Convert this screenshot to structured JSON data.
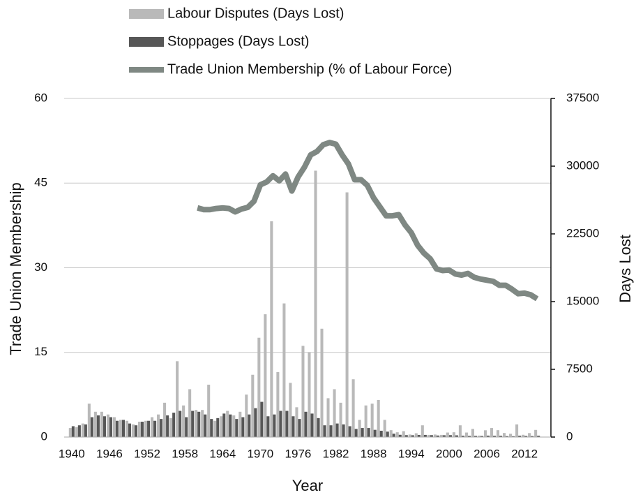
{
  "chart_data": {
    "type": "bar-line",
    "x_label": "Year",
    "y_label": "Trade Union Membership",
    "y2_label": "Days Lost",
    "x": [
      1940,
      1941,
      1942,
      1943,
      1944,
      1945,
      1946,
      1947,
      1948,
      1949,
      1950,
      1951,
      1952,
      1953,
      1954,
      1955,
      1956,
      1957,
      1958,
      1959,
      1960,
      1961,
      1962,
      1963,
      1964,
      1965,
      1966,
      1967,
      1968,
      1969,
      1970,
      1971,
      1972,
      1973,
      1974,
      1975,
      1976,
      1977,
      1978,
      1979,
      1980,
      1981,
      1982,
      1983,
      1984,
      1985,
      1986,
      1987,
      1988,
      1989,
      1990,
      1991,
      1992,
      1993,
      1994,
      1995,
      1996,
      1997,
      1998,
      1999,
      2000,
      2001,
      2002,
      2003,
      2004,
      2005,
      2006,
      2007,
      2008,
      2009,
      2010,
      2011,
      2012,
      2013,
      2014
    ],
    "xlim": [
      1938.8,
      2016.2
    ],
    "xticks": [
      1940,
      1946,
      1952,
      1958,
      1964,
      1970,
      1976,
      1982,
      1988,
      1994,
      2000,
      2006,
      2012
    ],
    "ylim": [
      0,
      60
    ],
    "yticks": [
      0,
      15,
      30,
      45,
      60
    ],
    "y2lim": [
      0,
      37500
    ],
    "y2ticks": [
      0,
      7500,
      15000,
      22500,
      30000,
      37500
    ],
    "grid": true,
    "legend": "top",
    "series": [
      {
        "name": "Labour Disputes (Days Lost)",
        "kind": "bar",
        "axis": "y2",
        "color": "#b9b9b9",
        "values": [
          1000,
          1100,
          1500,
          3700,
          2800,
          2800,
          2500,
          2200,
          1900,
          1800,
          1400,
          1700,
          1800,
          2200,
          2500,
          3800,
          2100,
          8400,
          3500,
          5300,
          3000,
          3000,
          5800,
          1800,
          2300,
          2900,
          2400,
          2800,
          4700,
          6900,
          11000,
          13600,
          23900,
          7200,
          14800,
          6000,
          3300,
          10100,
          9400,
          29500,
          12000,
          4300,
          5300,
          3800,
          27100,
          6400,
          1900,
          3500,
          3700,
          4100,
          1900,
          760,
          530,
          650,
          280,
          420,
          1300,
          240,
          280,
          240,
          500,
          530,
          1300,
          500,
          900,
          160,
          750,
          1000,
          760,
          450,
          360,
          1400,
          250,
          440,
          790
        ]
      },
      {
        "name": "Stoppages (Days Lost)",
        "kind": "bar",
        "axis": "y2",
        "color": "#575757",
        "values": [
          1200,
          1300,
          1400,
          2200,
          2400,
          2300,
          2200,
          1800,
          1900,
          1500,
          1300,
          1700,
          1800,
          1800,
          2000,
          2400,
          2700,
          2900,
          2200,
          2900,
          2800,
          2500,
          2000,
          2100,
          2600,
          2500,
          2000,
          2200,
          2500,
          3200,
          3900,
          2300,
          2500,
          2900,
          2900,
          2300,
          2000,
          2800,
          2600,
          2100,
          1300,
          1300,
          1500,
          1400,
          1200,
          900,
          1000,
          1000,
          800,
          700,
          600,
          370,
          250,
          210,
          200,
          230,
          240,
          210,
          170,
          200,
          210,
          190,
          150,
          130,
          130,
          120,
          160,
          140,
          140,
          100,
          90,
          150,
          120,
          110,
          150
        ]
      },
      {
        "name": "Trade Union Membership (% of Labour Force)",
        "kind": "line",
        "axis": "y",
        "color": "#7f8883",
        "values": [
          null,
          null,
          null,
          null,
          null,
          null,
          null,
          null,
          null,
          null,
          null,
          null,
          null,
          null,
          null,
          null,
          null,
          null,
          null,
          null,
          40.6,
          40.3,
          40.3,
          40.5,
          40.6,
          40.5,
          39.9,
          40.4,
          40.7,
          41.8,
          44.7,
          45.2,
          46.3,
          45.4,
          46.6,
          43.6,
          46.1,
          47.8,
          50.0,
          50.6,
          51.8,
          52.2,
          51.9,
          50.0,
          48.4,
          45.6,
          45.6,
          44.6,
          42.4,
          40.8,
          39.2,
          39.2,
          39.4,
          37.6,
          36.2,
          34.0,
          32.6,
          31.6,
          29.8,
          29.5,
          29.6,
          28.9,
          28.7,
          29.0,
          28.3,
          28.0,
          27.8,
          27.6,
          26.9,
          26.9,
          26.2,
          25.4,
          25.5,
          25.2,
          24.5
        ]
      }
    ]
  }
}
